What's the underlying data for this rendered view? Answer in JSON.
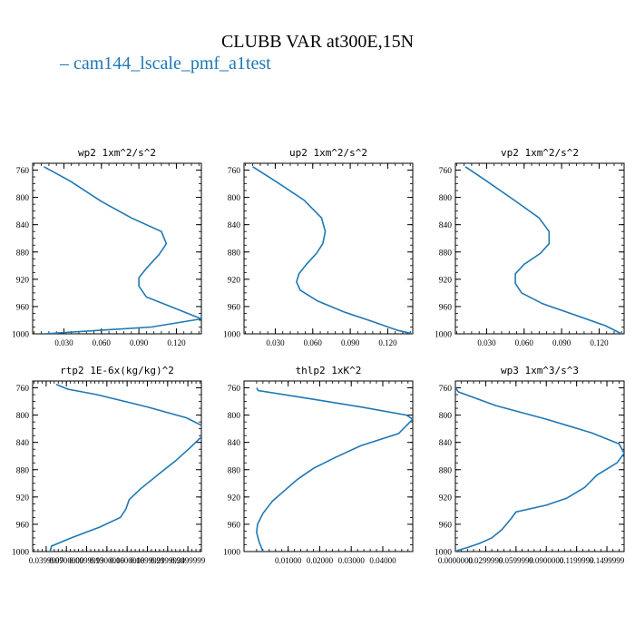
{
  "figure": {
    "title": "CLUBB VAR at300E,15N",
    "legend_label": "– cam144_lscale_pmf_a1test",
    "line_color": "#1f77b4"
  },
  "chart_data": [
    {
      "type": "line",
      "title": "wp2  1xm^2/s^2",
      "ylim": [
        1000,
        750
      ],
      "y_reversed": true,
      "yticks": [
        760,
        800,
        840,
        880,
        920,
        960,
        1000
      ],
      "xlim": [
        0.005,
        0.14
      ],
      "xticks": [
        0.03,
        0.06,
        0.09,
        0.12
      ],
      "xtick_labels": [
        "0.030",
        "0.060",
        "0.090",
        "0.120"
      ],
      "series": [
        {
          "x": [
            0.014,
            0.035,
            0.06,
            0.084,
            0.108,
            0.112,
            0.106,
            0.096,
            0.09,
            0.09,
            0.096,
            0.118,
            0.14,
            0.1,
            0.014
          ],
          "y": [
            755,
            776,
            806,
            830,
            850,
            868,
            884,
            904,
            918,
            930,
            946,
            962,
            978,
            990,
            1000
          ]
        }
      ]
    },
    {
      "type": "line",
      "title": "up2  1xm^2/s^2",
      "ylim": [
        1000,
        750
      ],
      "y_reversed": true,
      "yticks": [
        760,
        800,
        840,
        880,
        920,
        960,
        1000
      ],
      "xlim": [
        0.005,
        0.14
      ],
      "xticks": [
        0.03,
        0.06,
        0.09,
        0.12
      ],
      "xtick_labels": [
        "0.030",
        "0.060",
        "0.090",
        "0.120"
      ],
      "series": [
        {
          "x": [
            0.012,
            0.03,
            0.053,
            0.067,
            0.07,
            0.068,
            0.063,
            0.055,
            0.049,
            0.047,
            0.05,
            0.064,
            0.085,
            0.108,
            0.128,
            0.14
          ],
          "y": [
            755,
            776,
            804,
            830,
            850,
            868,
            882,
            898,
            912,
            924,
            936,
            952,
            968,
            982,
            995,
            1000
          ]
        }
      ]
    },
    {
      "type": "line",
      "title": "vp2  1xm^2/s^2",
      "ylim": [
        1000,
        750
      ],
      "y_reversed": true,
      "yticks": [
        760,
        800,
        840,
        880,
        920,
        960,
        1000
      ],
      "xlim": [
        0.005,
        0.14
      ],
      "xticks": [
        0.03,
        0.06,
        0.09,
        0.12
      ],
      "xtick_labels": [
        "0.030",
        "0.060",
        "0.090",
        "0.120"
      ],
      "series": [
        {
          "x": [
            0.013,
            0.03,
            0.052,
            0.072,
            0.08,
            0.08,
            0.073,
            0.06,
            0.053,
            0.053,
            0.058,
            0.075,
            0.1,
            0.125,
            0.138
          ],
          "y": [
            755,
            776,
            804,
            830,
            850,
            868,
            882,
            898,
            912,
            926,
            940,
            956,
            972,
            988,
            1000
          ]
        }
      ]
    },
    {
      "type": "line",
      "title": "rtp2  1E-6x(kg/kg)^2",
      "ylim": [
        1000,
        750
      ],
      "y_reversed": true,
      "yticks": [
        760,
        800,
        840,
        880,
        920,
        960,
        1000
      ],
      "xlim": [
        0.02,
        0.27
      ],
      "xticks": [
        0.04,
        0.07,
        0.1,
        0.13,
        0.16,
        0.19,
        0.22,
        0.25
      ],
      "xtick_labels": [
        "0.0399999",
        "0.0700000",
        "0.0999999",
        "0.1300000",
        "0.1600000",
        "0.1899999",
        "0.2199999",
        "0.2499999"
      ],
      "series": [
        {
          "x": [
            0.055,
            0.072,
            0.115,
            0.19,
            0.248,
            0.272,
            0.272,
            0.253,
            0.233,
            0.21,
            0.18,
            0.163,
            0.158,
            0.15,
            0.12,
            0.077,
            0.048,
            0.046
          ],
          "y": [
            755,
            762,
            770,
            788,
            804,
            816,
            830,
            848,
            866,
            884,
            908,
            924,
            938,
            950,
            964,
            980,
            992,
            1000
          ]
        }
      ]
    },
    {
      "type": "line",
      "title": "thlp2  1xK^2",
      "ylim": [
        1000,
        750
      ],
      "y_reversed": true,
      "yticks": [
        760,
        800,
        840,
        880,
        920,
        960,
        1000
      ],
      "xlim": [
        -0.004,
        0.0495
      ],
      "xticks": [
        0.01,
        0.02,
        0.03,
        0.04
      ],
      "xtick_labels": [
        "0.01000",
        "0.02000",
        "0.03000",
        "0.04000"
      ],
      "series": [
        {
          "x": [
            0.0,
            0.0005,
            0.017,
            0.033,
            0.0475,
            0.0495,
            0.045,
            0.033,
            0.025,
            0.018,
            0.013,
            0.009,
            0.005,
            0.002,
            0.0003,
            0.0,
            0.0008,
            0.002
          ],
          "y": [
            760,
            764,
            776,
            788,
            800,
            806,
            827,
            845,
            862,
            878,
            894,
            910,
            926,
            944,
            960,
            972,
            986,
            1000
          ]
        }
      ]
    },
    {
      "type": "line",
      "title": "wp3  1xm^3/s^3",
      "ylim": [
        1000,
        750
      ],
      "y_reversed": true,
      "yticks": [
        760,
        800,
        840,
        880,
        920,
        960,
        1000
      ],
      "xlim": [
        0.0,
        0.167
      ],
      "xticks": [
        0.0,
        0.03,
        0.06,
        0.09,
        0.12,
        0.15
      ],
      "xtick_labels": [
        "0.0000000",
        "0.0299999",
        "0.0599999",
        "0.0900000",
        "0.1199999",
        "0.1499999"
      ],
      "series": [
        {
          "x": [
            0.0,
            0.003,
            0.04,
            0.09,
            0.135,
            0.162,
            0.167,
            0.16,
            0.14,
            0.128,
            0.11,
            0.09,
            0.06,
            0.055,
            0.046,
            0.036,
            0.024,
            0.012,
            0.003,
            0.0
          ],
          "y": [
            760,
            766,
            786,
            806,
            826,
            842,
            856,
            870,
            888,
            906,
            922,
            932,
            942,
            952,
            968,
            980,
            988,
            994,
            998,
            1000
          ]
        }
      ]
    }
  ]
}
